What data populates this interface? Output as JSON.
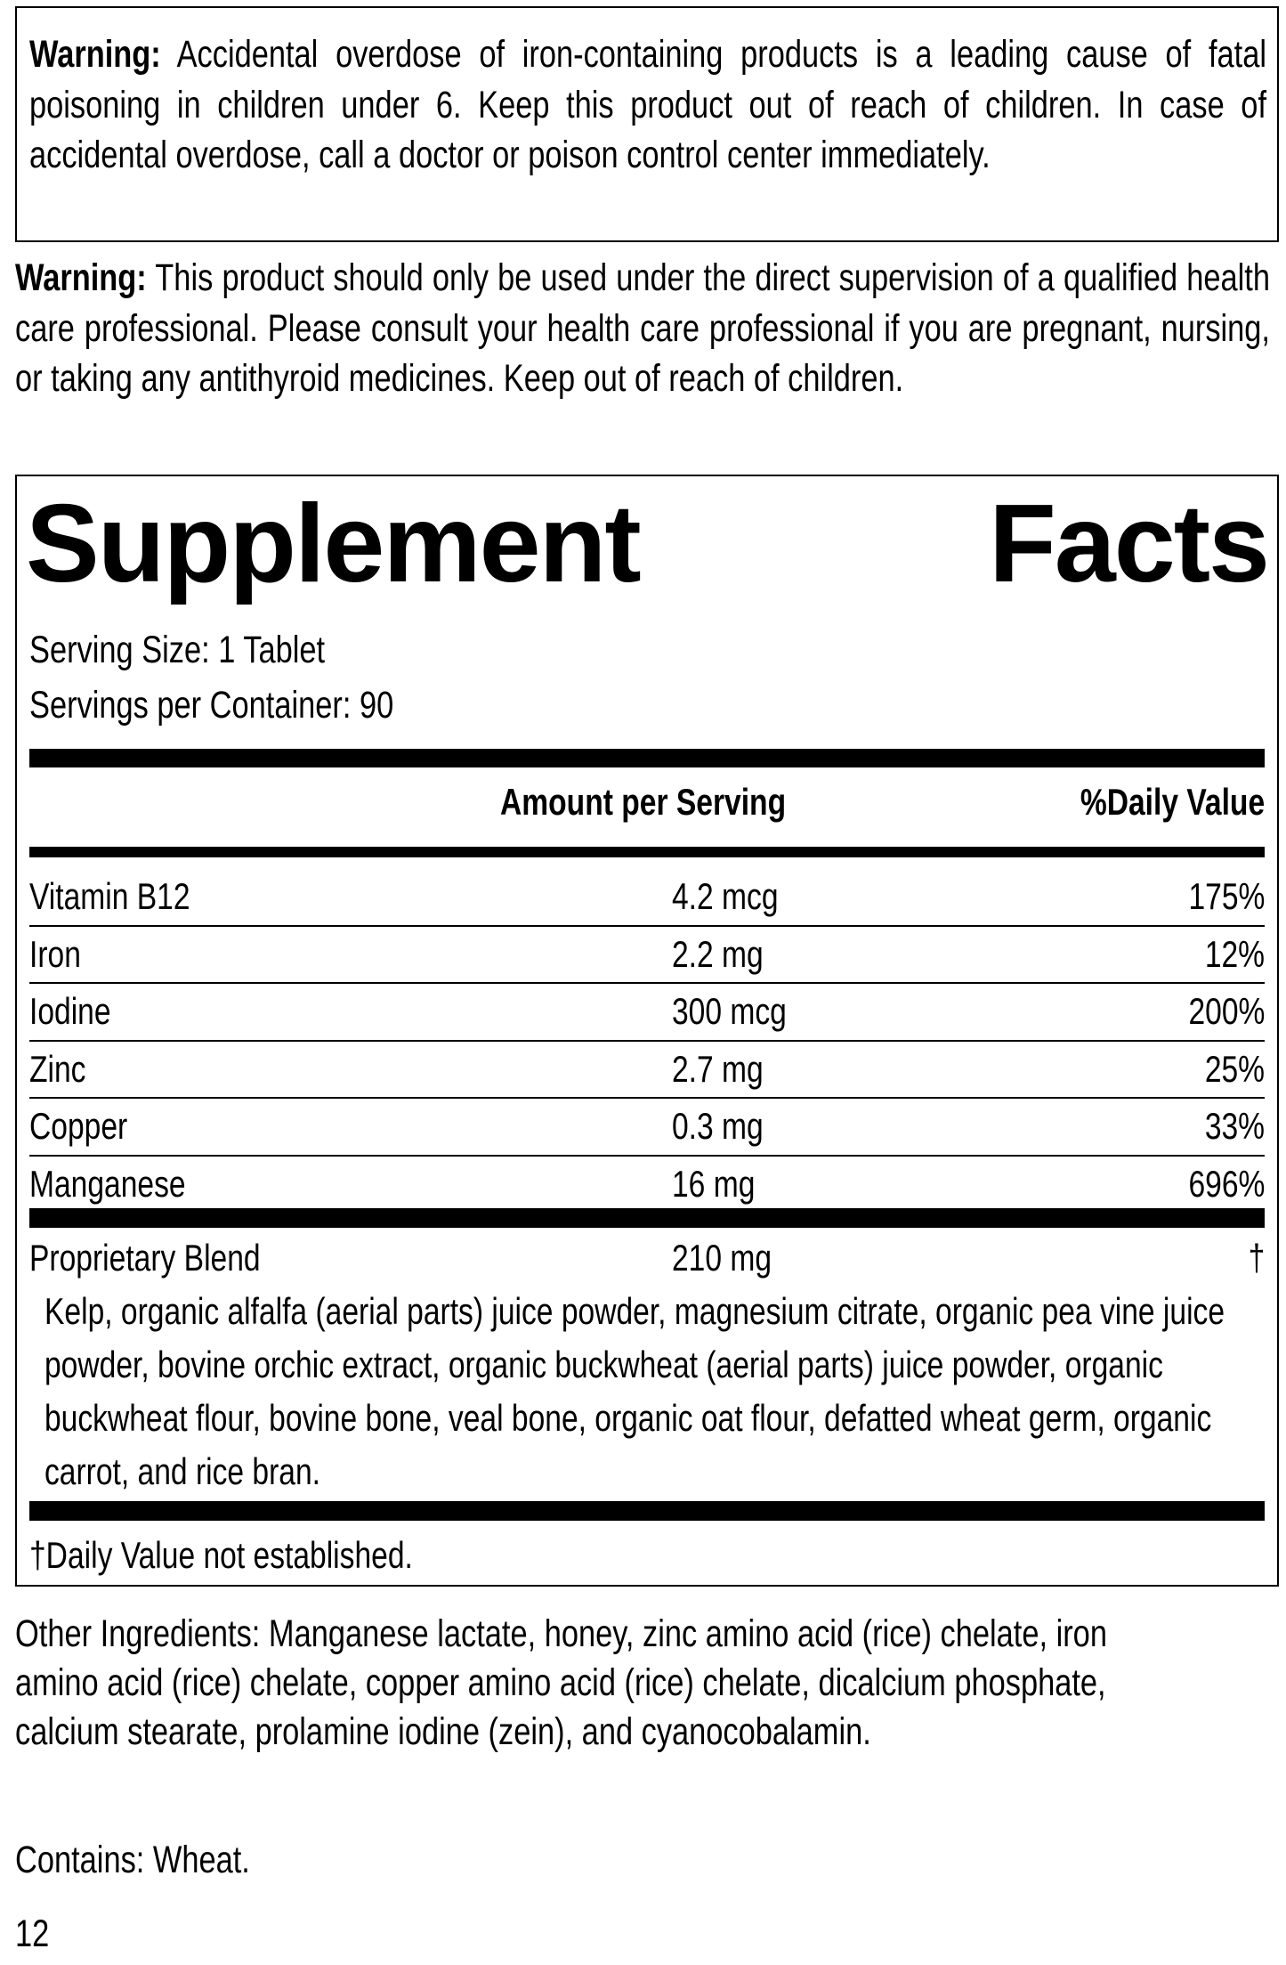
{
  "warning1": {
    "label": "Warning:",
    "text": " Accidental overdose of iron-containing products is a leading cause of fatal poisoning in children under 6. Keep this product out of reach of children. In case of accidental overdose, call a doctor or poison control center immediately."
  },
  "warning2": {
    "label": "Warning:",
    "text": " This product should only be used under the direct supervision of a qualified health care professional. Please consult your health care professional if you are pregnant, nursing, or taking any antithyroid medicines. Keep out of reach of children."
  },
  "facts": {
    "title_word1": "Supplement",
    "title_word2": "Facts",
    "serving_size": "Serving Size: 1 Tablet",
    "servings_per_container": "Servings per Container: 90",
    "header_amount": "Amount per Serving",
    "header_dv": "%Daily Value",
    "rows": [
      {
        "name": "Vitamin B12",
        "amount": "4.2 mcg",
        "dv": "175%"
      },
      {
        "name": "Iron",
        "amount": "2.2 mg",
        "dv": "12%"
      },
      {
        "name": "Iodine",
        "amount": "300 mcg",
        "dv": "200%"
      },
      {
        "name": "Zinc",
        "amount": "2.7 mg",
        "dv": "25%"
      },
      {
        "name": "Copper",
        "amount": "0.3 mg",
        "dv": "33%"
      },
      {
        "name": "Manganese",
        "amount": "16 mg",
        "dv": "696%"
      }
    ],
    "blend": {
      "name": "Proprietary Blend",
      "amount": "210 mg",
      "dv": "†",
      "ingredients": "Kelp, organic alfalfa (aerial parts) juice powder, magnesium citrate, organic pea vine juice powder, bovine orchic extract, organic buckwheat (aerial parts) juice powder, organic buckwheat flour, bovine bone, veal bone, organic oat flour, defatted wheat germ, organic carrot, and rice bran."
    },
    "footnote": "†Daily Value not established."
  },
  "other_ingredients": "Other Ingredients: Manganese lactate, honey, zinc amino acid (rice) chelate, iron amino acid (rice) chelate, copper amino acid (rice) chelate, dicalcium phosphate, calcium stearate, prolamine iodine (zein), and cyanocobalamin.",
  "contains": "Contains: Wheat.",
  "page_number": "12"
}
